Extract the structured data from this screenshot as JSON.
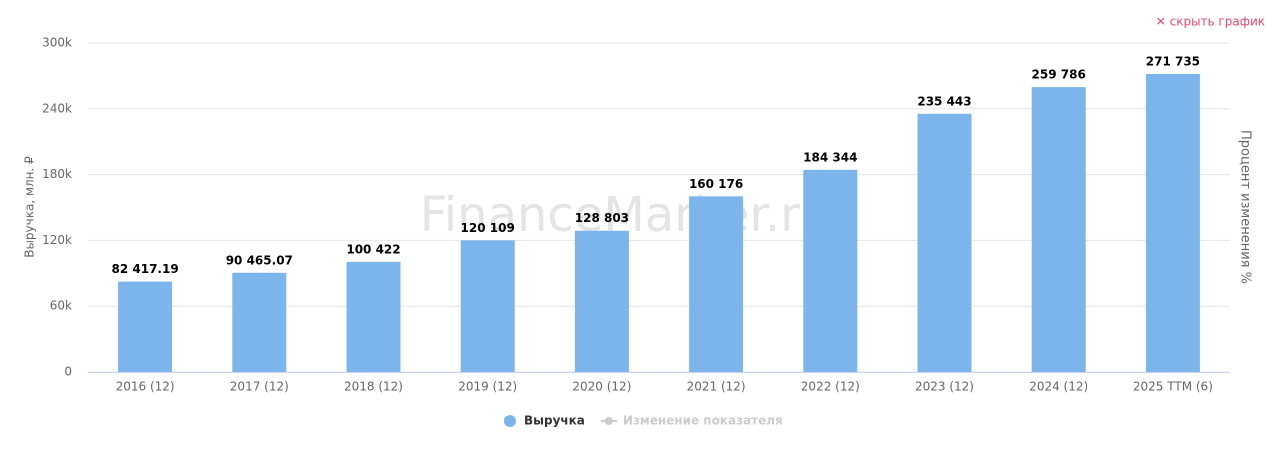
{
  "chart_data": {
    "type": "bar",
    "hide_button": "✕ скрыть график",
    "watermark": "FinanceMarker.ru",
    "y_label": "Выручка, млн. ₽",
    "y2_label": "Процент изменения %",
    "categories": [
      "2016 (12)",
      "2017 (12)",
      "2018 (12)",
      "2019 (12)",
      "2020 (12)",
      "2021 (12)",
      "2022 (12)",
      "2023 (12)",
      "2024 (12)",
      "2025 TTM (6)"
    ],
    "series": [
      {
        "name": "Выручка",
        "color": "#7cb5ec",
        "values": [
          82417.19,
          90465.07,
          100422,
          120109,
          128803,
          160176,
          184344,
          235443,
          259786,
          271735
        ],
        "value_labels": [
          "82 417.19",
          "90 465.07",
          "100 422",
          "120 109",
          "128 803",
          "160 176",
          "184 344",
          "235 443",
          "259 786",
          "271 735"
        ]
      }
    ],
    "hidden_series": [
      {
        "name": "Изменение показателя",
        "color": "#cccccc"
      }
    ],
    "ylim": [
      0,
      300000
    ],
    "yticks": [
      0,
      {
        "value": 60000,
        "label": "60k"
      },
      {
        "value": 120000,
        "label": "120k"
      },
      {
        "value": 180000,
        "label": "180k"
      },
      {
        "value": 240000,
        "label": "240k"
      },
      {
        "value": 300000,
        "label": "300k"
      }
    ],
    "grid": true
  }
}
